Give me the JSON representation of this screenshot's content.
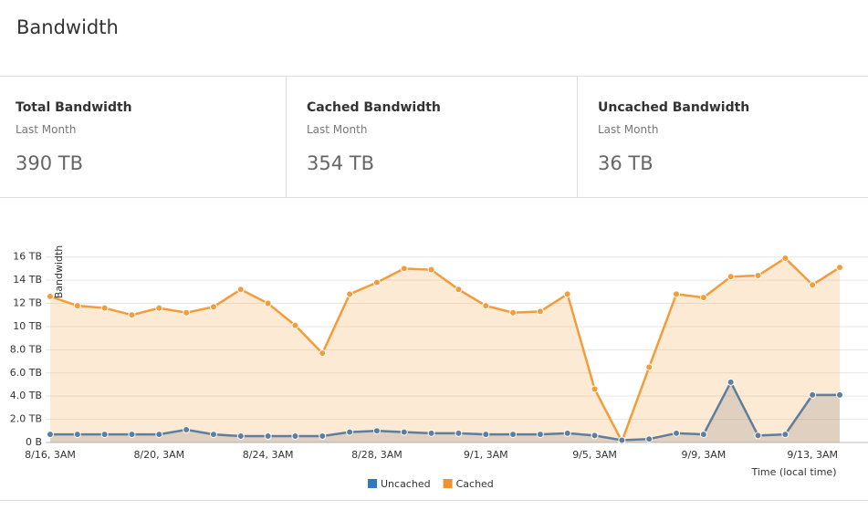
{
  "header": {
    "title": "Bandwidth"
  },
  "cards": [
    {
      "title": "Total Bandwidth",
      "subtitle": "Last Month",
      "value": "390 TB"
    },
    {
      "title": "Cached Bandwidth",
      "subtitle": "Last Month",
      "value": "354 TB"
    },
    {
      "title": "Uncached Bandwidth",
      "subtitle": "Last Month",
      "value": "36 TB"
    }
  ],
  "chart_data": {
    "type": "area",
    "y_label": "Bandwidth",
    "x_label": "Time (local time)",
    "categories": [
      "8/16, 3AM",
      null,
      null,
      null,
      "8/20, 3AM",
      null,
      null,
      null,
      "8/24, 3AM",
      null,
      null,
      null,
      "8/28, 3AM",
      null,
      null,
      null,
      "9/1, 3AM",
      null,
      null,
      null,
      "9/5, 3AM",
      null,
      null,
      null,
      "9/9, 3AM",
      null,
      null,
      null,
      "9/13, 3AM",
      null
    ],
    "series": [
      {
        "name": "Uncached",
        "color": "#5f7d9c",
        "legend_color": "#2f7ac0",
        "values": [
          0.7,
          0.7,
          0.7,
          0.7,
          0.7,
          1.1,
          0.7,
          0.55,
          0.55,
          0.55,
          0.55,
          0.9,
          1.0,
          0.9,
          0.8,
          0.8,
          0.7,
          0.7,
          0.7,
          0.8,
          0.6,
          0.2,
          0.3,
          0.8,
          0.7,
          5.2,
          0.6,
          0.7,
          4.1,
          4.1
        ]
      },
      {
        "name": "Cached",
        "color": "#f39c3a",
        "legend_color": "#f0922e",
        "values": [
          12.6,
          11.8,
          11.6,
          11.0,
          11.6,
          11.2,
          11.7,
          13.2,
          12.0,
          10.1,
          7.7,
          12.8,
          13.8,
          15.0,
          14.9,
          13.2,
          11.8,
          11.2,
          11.3,
          12.8,
          4.6,
          0.1,
          6.5,
          12.8,
          12.5,
          14.3,
          14.4,
          15.9,
          13.6,
          15.1
        ]
      }
    ],
    "ylim": [
      0,
      17
    ],
    "yticks": [
      {
        "value": 0,
        "label": "0 B"
      },
      {
        "value": 2,
        "label": "2.0 TB"
      },
      {
        "value": 4,
        "label": "4.0 TB"
      },
      {
        "value": 6,
        "label": "6.0 TB"
      },
      {
        "value": 8,
        "label": "8.0 TB"
      },
      {
        "value": 10,
        "label": "10 TB"
      },
      {
        "value": 12,
        "label": "12 TB"
      },
      {
        "value": 14,
        "label": "14 TB"
      },
      {
        "value": 16,
        "label": "16 TB"
      }
    ],
    "grid": true
  }
}
